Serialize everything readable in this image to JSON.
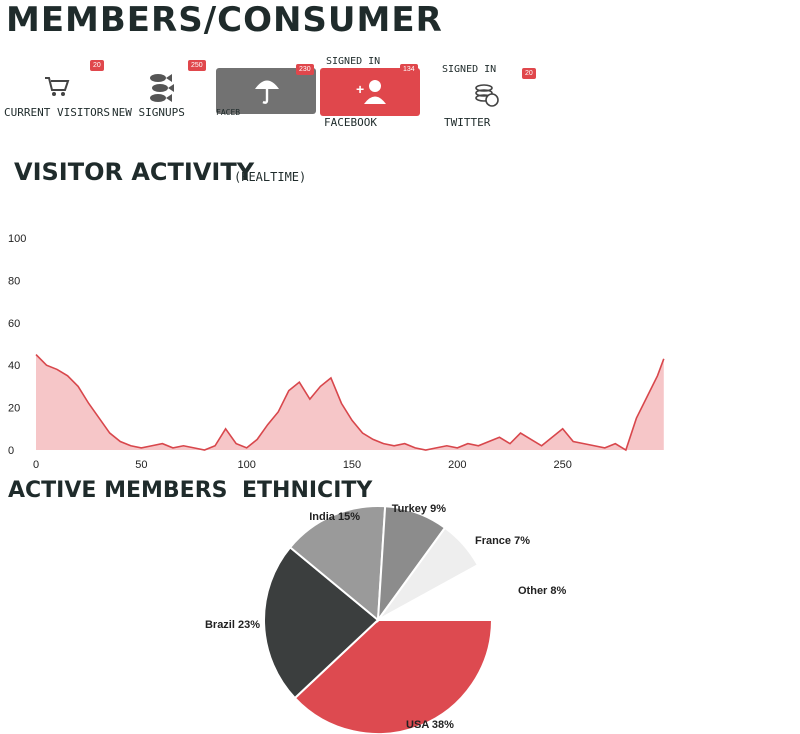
{
  "header": {
    "title": "MEMBERS/CONSUMER"
  },
  "stats": [
    {
      "label": "CURRENT VISITORS",
      "badge": "20",
      "icon": "shopping-cart-icon"
    },
    {
      "label": "NEW SIGNUPS",
      "badge": "250",
      "icon": "fish-icon"
    },
    {
      "label": "FACEB",
      "badge": "230",
      "icon": "umbrella-icon",
      "over": ""
    },
    {
      "label": "FACEBOOK",
      "badge": "134",
      "icon": "add-user-icon",
      "over": "SIGNED IN"
    },
    {
      "label": "TWITTER",
      "badge": "20",
      "icon": "coins-icon",
      "over": "SIGNED IN"
    }
  ],
  "sections": {
    "visitor_activity": "VISITOR ACTIVITY",
    "visitor_note": "(REALTIME)",
    "active_members": "ACTIVE MEMBERS",
    "ethnicity": "ETHNICITY"
  },
  "colors": {
    "accent": "#e0474c",
    "area_fill": "#f6c6c8",
    "line": "#d8474c",
    "dark": "#3a3d3d",
    "grey": "#8a8a8a",
    "light_grey": "#e6e6e6"
  },
  "chart_data": [
    {
      "type": "area",
      "title": "",
      "xlabel": "",
      "ylabel": "",
      "xlim": [
        0,
        300
      ],
      "ylim": [
        0,
        100
      ],
      "x_ticks": [
        0,
        50,
        100,
        150,
        200,
        250
      ],
      "y_ticks": [
        0,
        20,
        40,
        60,
        80,
        100
      ],
      "grid": false,
      "x": [
        0,
        5,
        10,
        15,
        20,
        25,
        30,
        35,
        40,
        45,
        50,
        55,
        60,
        65,
        70,
        75,
        80,
        85,
        90,
        95,
        100,
        105,
        110,
        115,
        120,
        125,
        130,
        135,
        140,
        145,
        150,
        155,
        160,
        165,
        170,
        175,
        180,
        185,
        190,
        195,
        200,
        205,
        210,
        215,
        220,
        225,
        230,
        235,
        240,
        245,
        250,
        255,
        260,
        265,
        270,
        275,
        280,
        285,
        290,
        295,
        298
      ],
      "values": [
        45,
        40,
        38,
        35,
        30,
        22,
        15,
        8,
        4,
        2,
        1,
        2,
        3,
        1,
        2,
        1,
        0,
        2,
        10,
        3,
        1,
        5,
        12,
        18,
        28,
        32,
        24,
        30,
        34,
        22,
        14,
        8,
        5,
        3,
        2,
        3,
        1,
        0,
        1,
        2,
        1,
        3,
        2,
        4,
        6,
        3,
        8,
        5,
        2,
        6,
        10,
        4,
        3,
        2,
        1,
        3,
        0,
        15,
        25,
        35,
        43
      ]
    },
    {
      "type": "pie",
      "title": "",
      "categories": [
        "USA",
        "Brazil",
        "India",
        "Turkey",
        "France",
        "Other"
      ],
      "values": [
        38,
        23,
        15,
        9,
        7,
        8
      ],
      "labels": [
        "USA 38%",
        "Brazil 23%",
        "India 15%",
        "Turkey 9%",
        "France 7%",
        "Other 8%"
      ],
      "colors": [
        "#dd4a50",
        "#3b3e3e",
        "#9a9a9a",
        "#8c8c8c",
        "#eeeeee",
        "#ffffff"
      ]
    }
  ]
}
